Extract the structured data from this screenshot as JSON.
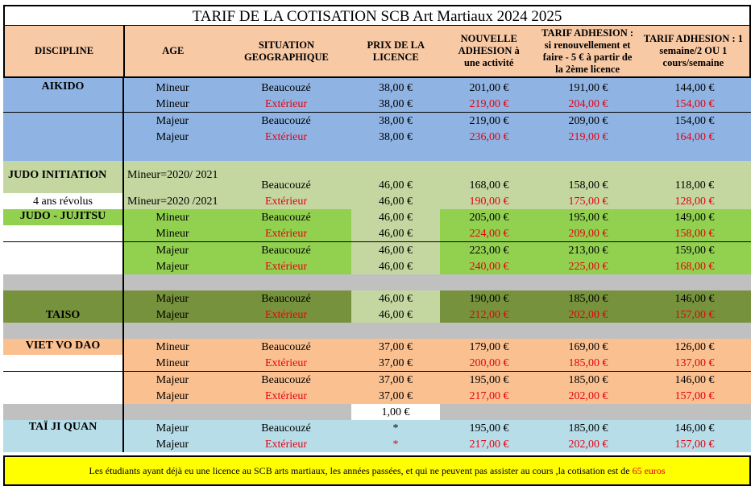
{
  "title": "TARIF DE LA COTISATION SCB Art Martiaux 2024 2025",
  "headers": {
    "discipline": "DISCIPLINE",
    "age": "AGE",
    "situation": "SITUATION GEOGRAPHIQUE",
    "prix": "PRIX DE LA LICENCE",
    "nouvelle": "NOUVELLE ADHESION à une activité",
    "renouvellement": "TARIF ADHESION : si renouvellement et faire - 5 € à partir de la 2ème licence",
    "semaine": "TARIF ADHESION : 1 semaine/2 OU 1 cours/semaine"
  },
  "rows": [
    {
      "discipline": "AIKIDO",
      "age": "Mineur",
      "situation": "Beaucouzé",
      "licence": "38,00 €",
      "nouvelle": "201,00 €",
      "renouv": "191,00 €",
      "semaine": "144,00 €"
    },
    {
      "discipline": "",
      "age": "Mineur",
      "situation": "Extérieur",
      "licence": "38,00 €",
      "nouvelle": "219,00 €",
      "renouv": "204,00 €",
      "semaine": "154,00 €"
    },
    {
      "discipline": "",
      "age": "Majeur",
      "situation": "Beaucouzé",
      "licence": "38,00 €",
      "nouvelle": "219,00 €",
      "renouv": "209,00 €",
      "semaine": "154,00 €"
    },
    {
      "discipline": "",
      "age": "Majeur",
      "situation": "Extérieur",
      "licence": "38,00 €",
      "nouvelle": "236,00 €",
      "renouv": "219,00 €",
      "semaine": "164,00 €"
    },
    {
      "discipline": "JUDO INITIATION",
      "age": "Mineur=2020/ 2021",
      "situation": "Beaucouzé",
      "licence": "46,00 €",
      "nouvelle": "168,00 €",
      "renouv": "158,00 €",
      "semaine": "118,00 €"
    },
    {
      "discipline": "4 ans révolus",
      "age": "Mineur=2020 /2021",
      "situation": "Extérieur",
      "licence": "46,00 €",
      "nouvelle": "190,00 €",
      "renouv": "175,00 €",
      "semaine": "128,00 €"
    },
    {
      "discipline": "JUDO - JUJITSU",
      "age": "Mineur",
      "situation": "Beaucouzé",
      "licence": "46,00 €",
      "nouvelle": "205,00 €",
      "renouv": "195,00 €",
      "semaine": "149,00 €"
    },
    {
      "discipline": "",
      "age": "Mineur",
      "situation": "Extérieur",
      "licence": "46,00 €",
      "nouvelle": "224,00 €",
      "renouv": "209,00 €",
      "semaine": "158,00 €"
    },
    {
      "discipline": "",
      "age": "Majeur",
      "situation": "Beaucouzé",
      "licence": "46,00 €",
      "nouvelle": "223,00 €",
      "renouv": "213,00 €",
      "semaine": "159,00 €"
    },
    {
      "discipline": "",
      "age": "Majeur",
      "situation": "Extérieur",
      "licence": "46,00 €",
      "nouvelle": "240,00 €",
      "renouv": "225,00 €",
      "semaine": "168,00 €"
    },
    {
      "discipline": "",
      "age": "Majeur",
      "situation": "Beaucouzé",
      "licence": "46,00 €",
      "nouvelle": "190,00 €",
      "renouv": "185,00 €",
      "semaine": "146,00 €"
    },
    {
      "discipline": "TAISO",
      "age": "Majeur",
      "situation": "Extérieur",
      "licence": "46,00 €",
      "nouvelle": "212,00 €",
      "renouv": "202,00 €",
      "semaine": "157,00 €"
    },
    {
      "discipline": "VIET VO DAO",
      "age": "Mineur",
      "situation": "Beaucouzé",
      "licence": "37,00 €",
      "nouvelle": "179,00 €",
      "renouv": "169,00 €",
      "semaine": "126,00 €"
    },
    {
      "discipline": "",
      "age": "Mineur",
      "situation": "Extérieur",
      "licence": "37,00 €",
      "nouvelle": "200,00 €",
      "renouv": "185,00 €",
      "semaine": "137,00 €"
    },
    {
      "discipline": "",
      "age": "Majeur",
      "situation": "Beaucouzé",
      "licence": "37,00 €",
      "nouvelle": "195,00 €",
      "renouv": "185,00 €",
      "semaine": "146,00 €"
    },
    {
      "discipline": "",
      "age": "Majeur",
      "situation": "Extérieur",
      "licence": "37,00 €",
      "nouvelle": "217,00 €",
      "renouv": "202,00 €",
      "semaine": "157,00 €"
    },
    {
      "discipline": "",
      "age": "",
      "situation": "",
      "licence": "1,00 €",
      "nouvelle": "",
      "renouv": "",
      "semaine": ""
    },
    {
      "discipline": "TAÏ JI QUAN",
      "age": "Majeur",
      "situation": "Beaucouzé",
      "licence": "*",
      "nouvelle": "195,00 €",
      "renouv": "185,00 €",
      "semaine": "146,00 €"
    },
    {
      "discipline": "",
      "age": "Majeur",
      "situation": "Extérieur",
      "licence": "*",
      "nouvelle": "217,00 €",
      "renouv": "202,00 €",
      "semaine": "157,00 €"
    }
  ],
  "footer": {
    "text": "Les étudiants ayant déjà eu une licence au SCB arts martiaux, les années passées, et qui ne peuvent pas assister au cours ,la cotisation est de",
    "amount": "65 euros"
  }
}
